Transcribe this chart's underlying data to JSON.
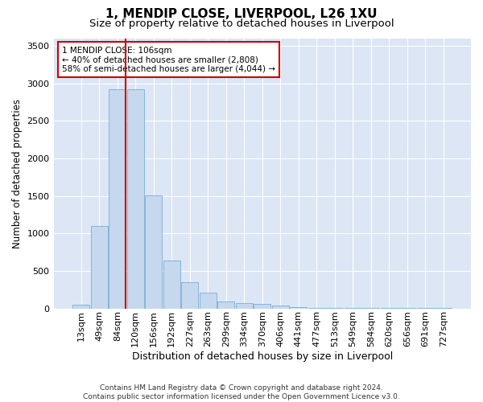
{
  "title1": "1, MENDIP CLOSE, LIVERPOOL, L26 1XU",
  "title2": "Size of property relative to detached houses in Liverpool",
  "xlabel": "Distribution of detached houses by size in Liverpool",
  "ylabel": "Number of detached properties",
  "categories": [
    "13sqm",
    "49sqm",
    "84sqm",
    "120sqm",
    "156sqm",
    "192sqm",
    "227sqm",
    "263sqm",
    "299sqm",
    "334sqm",
    "370sqm",
    "406sqm",
    "441sqm",
    "477sqm",
    "513sqm",
    "549sqm",
    "584sqm",
    "620sqm",
    "656sqm",
    "691sqm",
    "727sqm"
  ],
  "values": [
    45,
    1100,
    2920,
    2920,
    1510,
    640,
    350,
    210,
    90,
    75,
    55,
    35,
    20,
    10,
    5,
    5,
    5,
    2,
    2,
    2,
    2
  ],
  "bar_color": "#c5d8ee",
  "bar_edge_color": "#7aadd4",
  "vline_color": "#cc0000",
  "annotation_text": "1 MENDIP CLOSE: 106sqm\n← 40% of detached houses are smaller (2,808)\n58% of semi-detached houses are larger (4,044) →",
  "annotation_box_color": "#ffffff",
  "annotation_box_edge_color": "#cc0000",
  "ylim": [
    0,
    3600
  ],
  "yticks": [
    0,
    500,
    1000,
    1500,
    2000,
    2500,
    3000,
    3500
  ],
  "plot_bg_color": "#dce6f5",
  "grid_color": "#ffffff",
  "footer": "Contains HM Land Registry data © Crown copyright and database right 2024.\nContains public sector information licensed under the Open Government Licence v3.0.",
  "title1_fontsize": 11,
  "title2_fontsize": 9.5,
  "xlabel_fontsize": 9,
  "ylabel_fontsize": 8.5,
  "tick_fontsize": 8,
  "footer_fontsize": 6.5
}
